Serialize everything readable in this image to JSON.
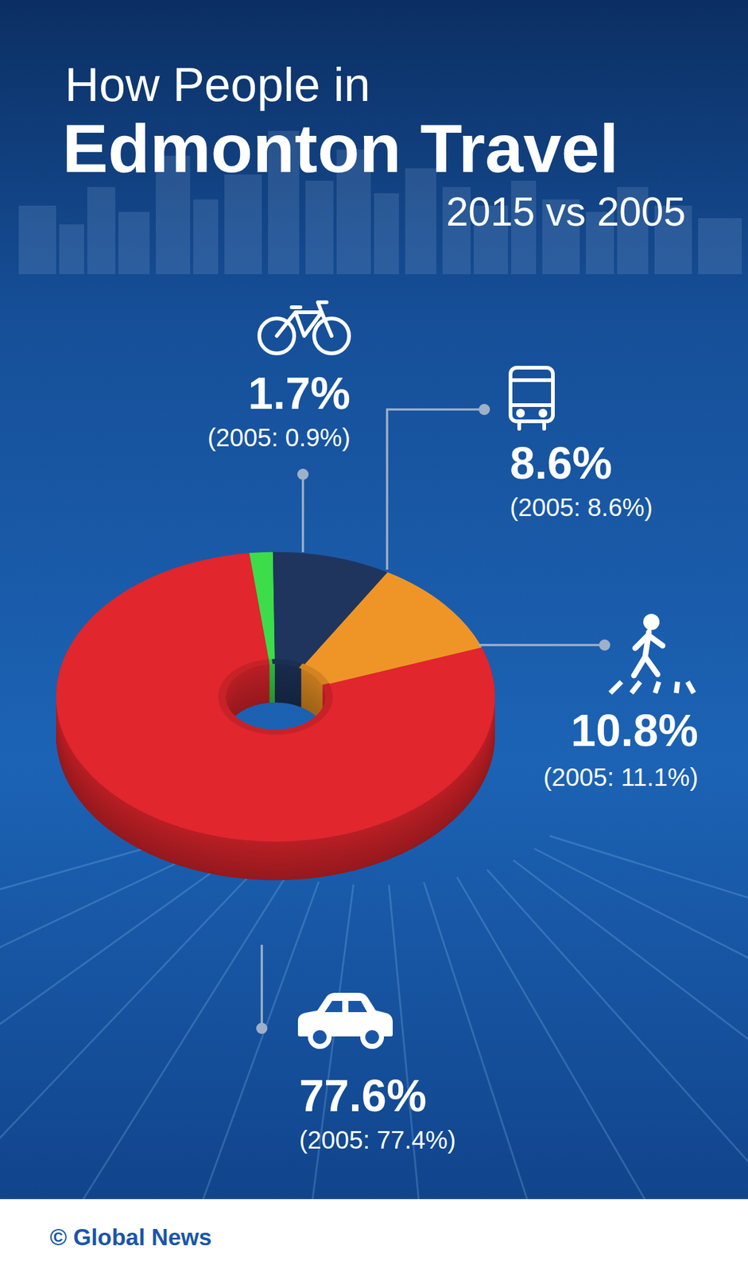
{
  "chart_data": {
    "type": "pie",
    "title": "How People in Edmonton Travel",
    "subtitle": "2015 vs 2005",
    "categories": [
      null,
      null,
      null,
      null
    ],
    "series": [
      {
        "values": [
          1.7,
          8.6,
          10.8,
          77.6
        ],
        "value_labels": [
          "1.7%",
          "8.6%",
          "10.8%",
          "77.6%"
        ],
        "colors": [
          "#3ddc4a",
          "#1f355e",
          "#ef9527",
          "#e1262d"
        ]
      },
      {
        "values": [
          0.9,
          8.6,
          11.1,
          77.4
        ],
        "value_labels": [
          "(2005: 0.9%)",
          "(2005: 8.6%)",
          "(2005: 11.1%)",
          "(2005: 77.4%)"
        ]
      }
    ],
    "data_labels": true,
    "annotations": [
      "© Global News"
    ]
  }
}
